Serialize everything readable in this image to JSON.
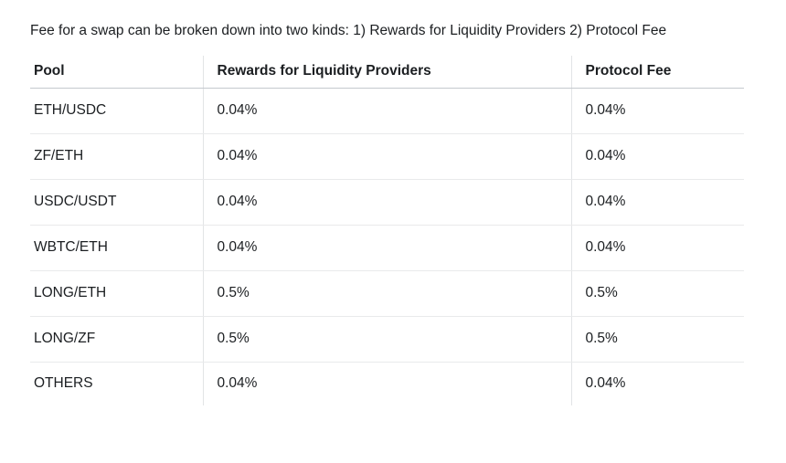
{
  "page": {
    "intro": "Fee for a swap can be broken down into two kinds: 1) Rewards for Liquidity Providers 2) Protocol Fee"
  },
  "table": {
    "columns": [
      "Pool",
      "Rewards for Liquidity Providers",
      "Protocol Fee"
    ],
    "rows": [
      {
        "pool": "ETH/USDC",
        "rewards": "0.04%",
        "protocol_fee": "0.04%"
      },
      {
        "pool": "ZF/ETH",
        "rewards": "0.04%",
        "protocol_fee": "0.04%"
      },
      {
        "pool": "USDC/USDT",
        "rewards": "0.04%",
        "protocol_fee": "0.04%"
      },
      {
        "pool": "WBTC/ETH",
        "rewards": "0.04%",
        "protocol_fee": "0.04%"
      },
      {
        "pool": "LONG/ETH",
        "rewards": "0.5%",
        "protocol_fee": "0.5%"
      },
      {
        "pool": "LONG/ZF",
        "rewards": "0.5%",
        "protocol_fee": "0.5%"
      },
      {
        "pool": "OTHERS",
        "rewards": "0.04%",
        "protocol_fee": "0.04%"
      }
    ]
  },
  "colors": {
    "text": "#1b1e21",
    "header_border": "#c5c9ce",
    "row_border": "#e9eaeb",
    "column_border": "#e2e4e6",
    "background": "#ffffff"
  }
}
